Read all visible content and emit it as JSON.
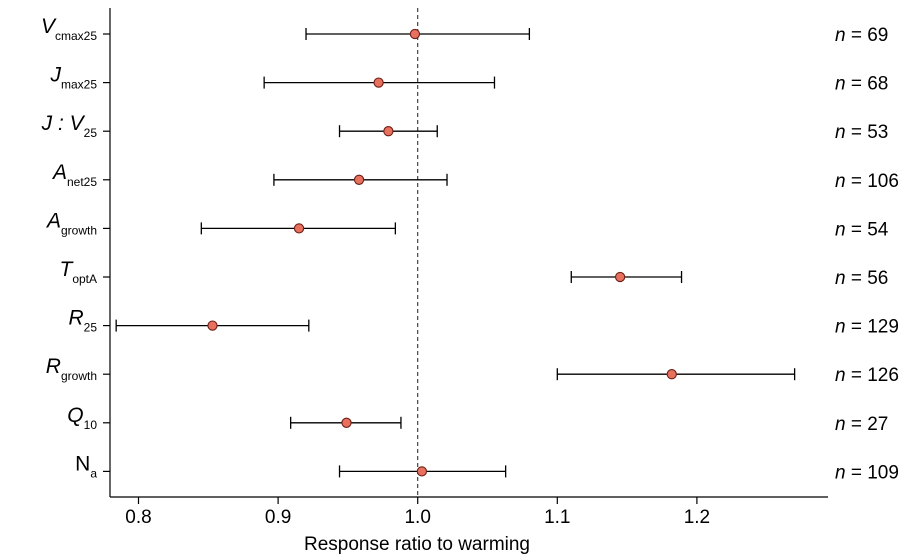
{
  "chart_data": {
    "type": "forest",
    "xlabel": "Response ratio to warming",
    "xlim": [
      0.76,
      1.3
    ],
    "xticks": [
      0.8,
      0.9,
      1.0,
      1.1,
      1.2
    ],
    "xtick_labels": [
      "0.8",
      "0.9",
      "1.0",
      "1.1",
      "1.2"
    ],
    "reference_line": 1.0,
    "marker_color": "#e8705f",
    "marker_edge_color": "#6b1f14",
    "rows": [
      {
        "base": "V",
        "sub": "cmax25",
        "italic": true,
        "mean": 0.998,
        "lo": 0.92,
        "hi": 1.08,
        "n_prefix": "n",
        "n_text": " = 69"
      },
      {
        "base": "J",
        "sub": "max25",
        "italic": true,
        "mean": 0.972,
        "lo": 0.89,
        "hi": 1.055,
        "n_prefix": "n",
        "n_text": " = 68"
      },
      {
        "base": "J : V",
        "sub": "25",
        "italic": true,
        "mean": 0.979,
        "lo": 0.944,
        "hi": 1.014,
        "n_prefix": "n",
        "n_text": " = 53"
      },
      {
        "base": "A",
        "sub": "net25",
        "italic": true,
        "mean": 0.958,
        "lo": 0.897,
        "hi": 1.021,
        "n_prefix": "n",
        "n_text": " = 106"
      },
      {
        "base": "A",
        "sub": "growth",
        "italic": true,
        "mean": 0.915,
        "lo": 0.845,
        "hi": 0.984,
        "n_prefix": "n",
        "n_text": " = 54"
      },
      {
        "base": "T",
        "sub": "optA",
        "italic": true,
        "mean": 1.145,
        "lo": 1.11,
        "hi": 1.189,
        "n_prefix": "n",
        "n_text": " = 56"
      },
      {
        "base": "R",
        "sub": "25",
        "italic": true,
        "mean": 0.853,
        "lo": 0.784,
        "hi": 0.922,
        "n_prefix": "n",
        "n_text": " = 129"
      },
      {
        "base": "R",
        "sub": "growth",
        "italic": true,
        "mean": 1.182,
        "lo": 1.1,
        "hi": 1.27,
        "n_prefix": "n",
        "n_text": " = 126"
      },
      {
        "base": "Q",
        "sub": "10",
        "italic": true,
        "mean": 0.949,
        "lo": 0.909,
        "hi": 0.988,
        "n_prefix": "n",
        "n_text": " = 27"
      },
      {
        "base": "N",
        "sub": "a",
        "italic": false,
        "mean": 1.003,
        "lo": 0.944,
        "hi": 1.063,
        "n_prefix": "n",
        "n_text": " = 109"
      }
    ]
  }
}
